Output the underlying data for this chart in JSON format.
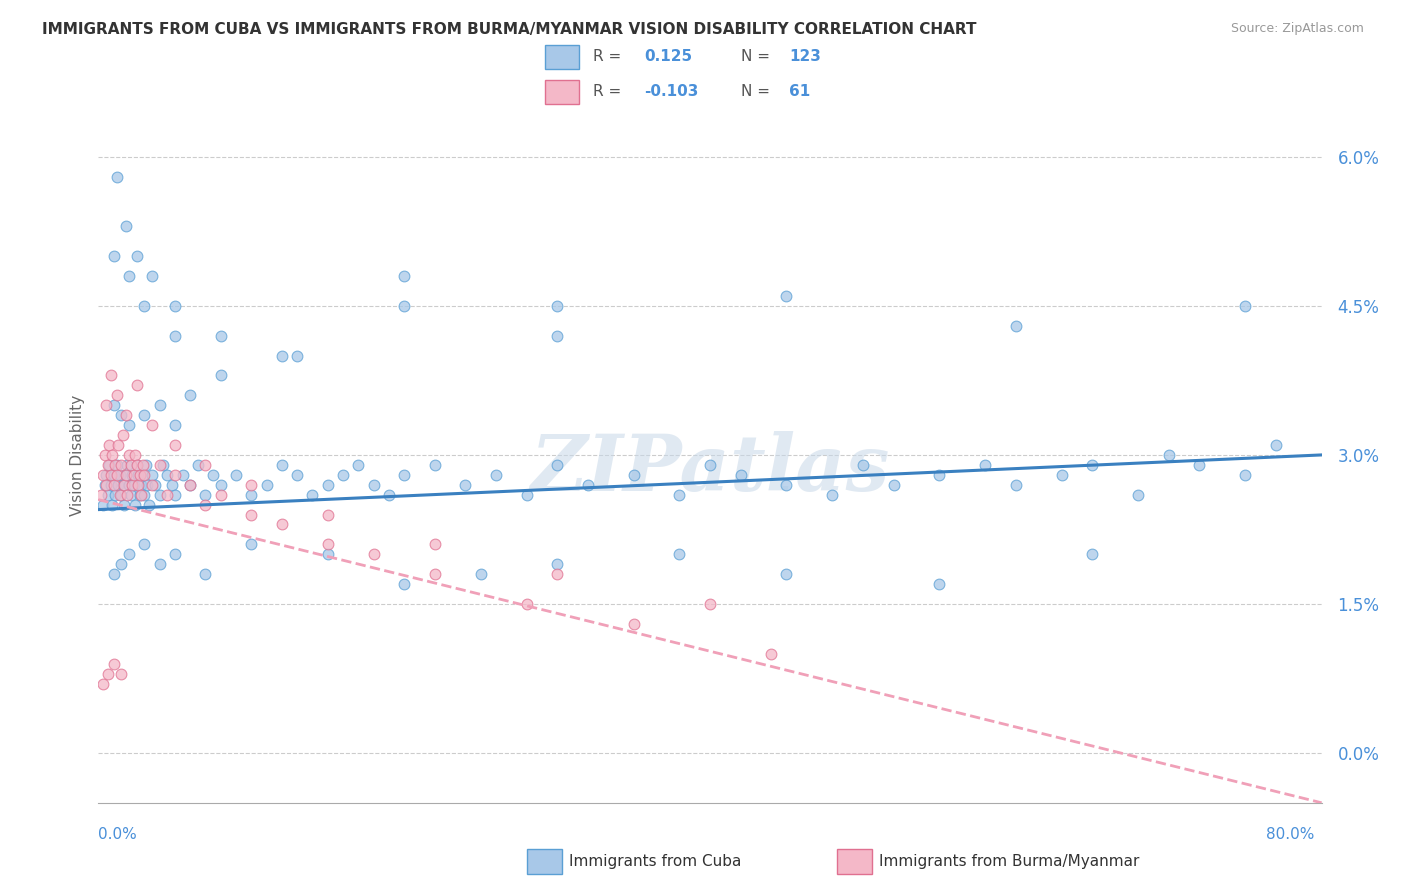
{
  "title": "IMMIGRANTS FROM CUBA VS IMMIGRANTS FROM BURMA/MYANMAR VISION DISABILITY CORRELATION CHART",
  "source": "Source: ZipAtlas.com",
  "ylabel": "Vision Disability",
  "ytick_vals": [
    0.0,
    1.5,
    3.0,
    4.5,
    6.0
  ],
  "xmin": 0.0,
  "xmax": 80.0,
  "ymin": -0.5,
  "ymax": 6.5,
  "color_cuba": "#a8c8e8",
  "color_cuba_edge": "#5a9fd4",
  "color_burma": "#f4b8c8",
  "color_burma_edge": "#e07090",
  "color_cuba_line": "#3a80c0",
  "color_burma_line": "#f0a0b8",
  "watermark": "ZIPatlas",
  "cuba_line_x0": 0.0,
  "cuba_line_y0": 2.45,
  "cuba_line_x1": 80.0,
  "cuba_line_y1": 3.0,
  "burma_line_x0": 0.0,
  "burma_line_y0": 2.55,
  "burma_line_x1": 80.0,
  "burma_line_y1": -0.5,
  "cuba_scatter_x": [
    0.3,
    0.4,
    0.5,
    0.6,
    0.7,
    0.8,
    0.9,
    1.0,
    1.1,
    1.2,
    1.3,
    1.4,
    1.5,
    1.6,
    1.7,
    1.8,
    1.9,
    2.0,
    2.1,
    2.2,
    2.3,
    2.4,
    2.5,
    2.6,
    2.7,
    2.8,
    2.9,
    3.0,
    3.1,
    3.2,
    3.3,
    3.5,
    3.7,
    4.0,
    4.2,
    4.5,
    4.8,
    5.0,
    5.5,
    6.0,
    6.5,
    7.0,
    7.5,
    8.0,
    9.0,
    10.0,
    11.0,
    12.0,
    13.0,
    14.0,
    15.0,
    16.0,
    17.0,
    18.0,
    19.0,
    20.0,
    22.0,
    24.0,
    26.0,
    28.0,
    30.0,
    32.0,
    35.0,
    38.0,
    40.0,
    42.0,
    45.0,
    48.0,
    50.0,
    52.0,
    55.0,
    58.0,
    60.0,
    63.0,
    65.0,
    68.0,
    70.0,
    72.0,
    75.0,
    77.0,
    1.0,
    1.5,
    2.0,
    3.0,
    4.0,
    5.0,
    7.0,
    10.0,
    15.0,
    20.0,
    25.0,
    30.0,
    38.0,
    45.0,
    55.0,
    65.0,
    1.0,
    2.0,
    3.0,
    5.0,
    8.0,
    12.0,
    20.0,
    30.0,
    45.0,
    60.0,
    75.0,
    1.0,
    1.5,
    2.0,
    3.0,
    4.0,
    5.0,
    6.0,
    1.2,
    1.8,
    2.5,
    3.5,
    5.0,
    8.0,
    13.0,
    20.0,
    30.0
  ],
  "cuba_scatter_y": [
    2.5,
    2.7,
    2.8,
    2.6,
    2.9,
    2.7,
    2.5,
    2.8,
    2.6,
    2.9,
    2.7,
    2.8,
    2.6,
    2.7,
    2.5,
    2.8,
    2.9,
    2.7,
    2.6,
    2.8,
    2.7,
    2.5,
    2.9,
    2.8,
    2.6,
    2.7,
    2.8,
    2.6,
    2.9,
    2.7,
    2.5,
    2.8,
    2.7,
    2.6,
    2.9,
    2.8,
    2.7,
    2.6,
    2.8,
    2.7,
    2.9,
    2.6,
    2.8,
    2.7,
    2.8,
    2.6,
    2.7,
    2.9,
    2.8,
    2.6,
    2.7,
    2.8,
    2.9,
    2.7,
    2.6,
    2.8,
    2.9,
    2.7,
    2.8,
    2.6,
    2.9,
    2.7,
    2.8,
    2.6,
    2.9,
    2.8,
    2.7,
    2.6,
    2.9,
    2.7,
    2.8,
    2.9,
    2.7,
    2.8,
    2.9,
    2.6,
    3.0,
    2.9,
    2.8,
    3.1,
    1.8,
    1.9,
    2.0,
    2.1,
    1.9,
    2.0,
    1.8,
    2.1,
    2.0,
    1.7,
    1.8,
    1.9,
    2.0,
    1.8,
    1.7,
    2.0,
    5.0,
    4.8,
    4.5,
    4.2,
    3.8,
    4.0,
    4.5,
    4.2,
    4.6,
    4.3,
    4.5,
    3.5,
    3.4,
    3.3,
    3.4,
    3.5,
    3.3,
    3.6,
    5.8,
    5.3,
    5.0,
    4.8,
    4.5,
    4.2,
    4.0,
    4.8,
    4.5
  ],
  "burma_scatter_x": [
    0.2,
    0.3,
    0.4,
    0.5,
    0.6,
    0.7,
    0.8,
    0.9,
    1.0,
    1.1,
    1.2,
    1.3,
    1.4,
    1.5,
    1.6,
    1.7,
    1.8,
    1.9,
    2.0,
    2.1,
    2.2,
    2.3,
    2.4,
    2.5,
    2.6,
    2.7,
    2.8,
    2.9,
    3.0,
    3.5,
    4.0,
    4.5,
    5.0,
    6.0,
    7.0,
    8.0,
    10.0,
    12.0,
    15.0,
    18.0,
    22.0,
    28.0,
    35.0,
    44.0,
    0.5,
    0.8,
    1.2,
    1.8,
    2.5,
    3.5,
    5.0,
    7.0,
    10.0,
    15.0,
    22.0,
    30.0,
    40.0,
    0.3,
    0.6,
    1.0,
    1.5
  ],
  "burma_scatter_y": [
    2.6,
    2.8,
    3.0,
    2.7,
    2.9,
    3.1,
    2.8,
    3.0,
    2.7,
    2.9,
    2.8,
    3.1,
    2.6,
    2.9,
    3.2,
    2.7,
    2.8,
    2.6,
    3.0,
    2.9,
    2.7,
    2.8,
    3.0,
    2.9,
    2.7,
    2.8,
    2.6,
    2.9,
    2.8,
    2.7,
    2.9,
    2.6,
    2.8,
    2.7,
    2.5,
    2.6,
    2.4,
    2.3,
    2.1,
    2.0,
    1.8,
    1.5,
    1.3,
    1.0,
    3.5,
    3.8,
    3.6,
    3.4,
    3.7,
    3.3,
    3.1,
    2.9,
    2.7,
    2.4,
    2.1,
    1.8,
    1.5,
    0.7,
    0.8,
    0.9,
    0.8
  ]
}
